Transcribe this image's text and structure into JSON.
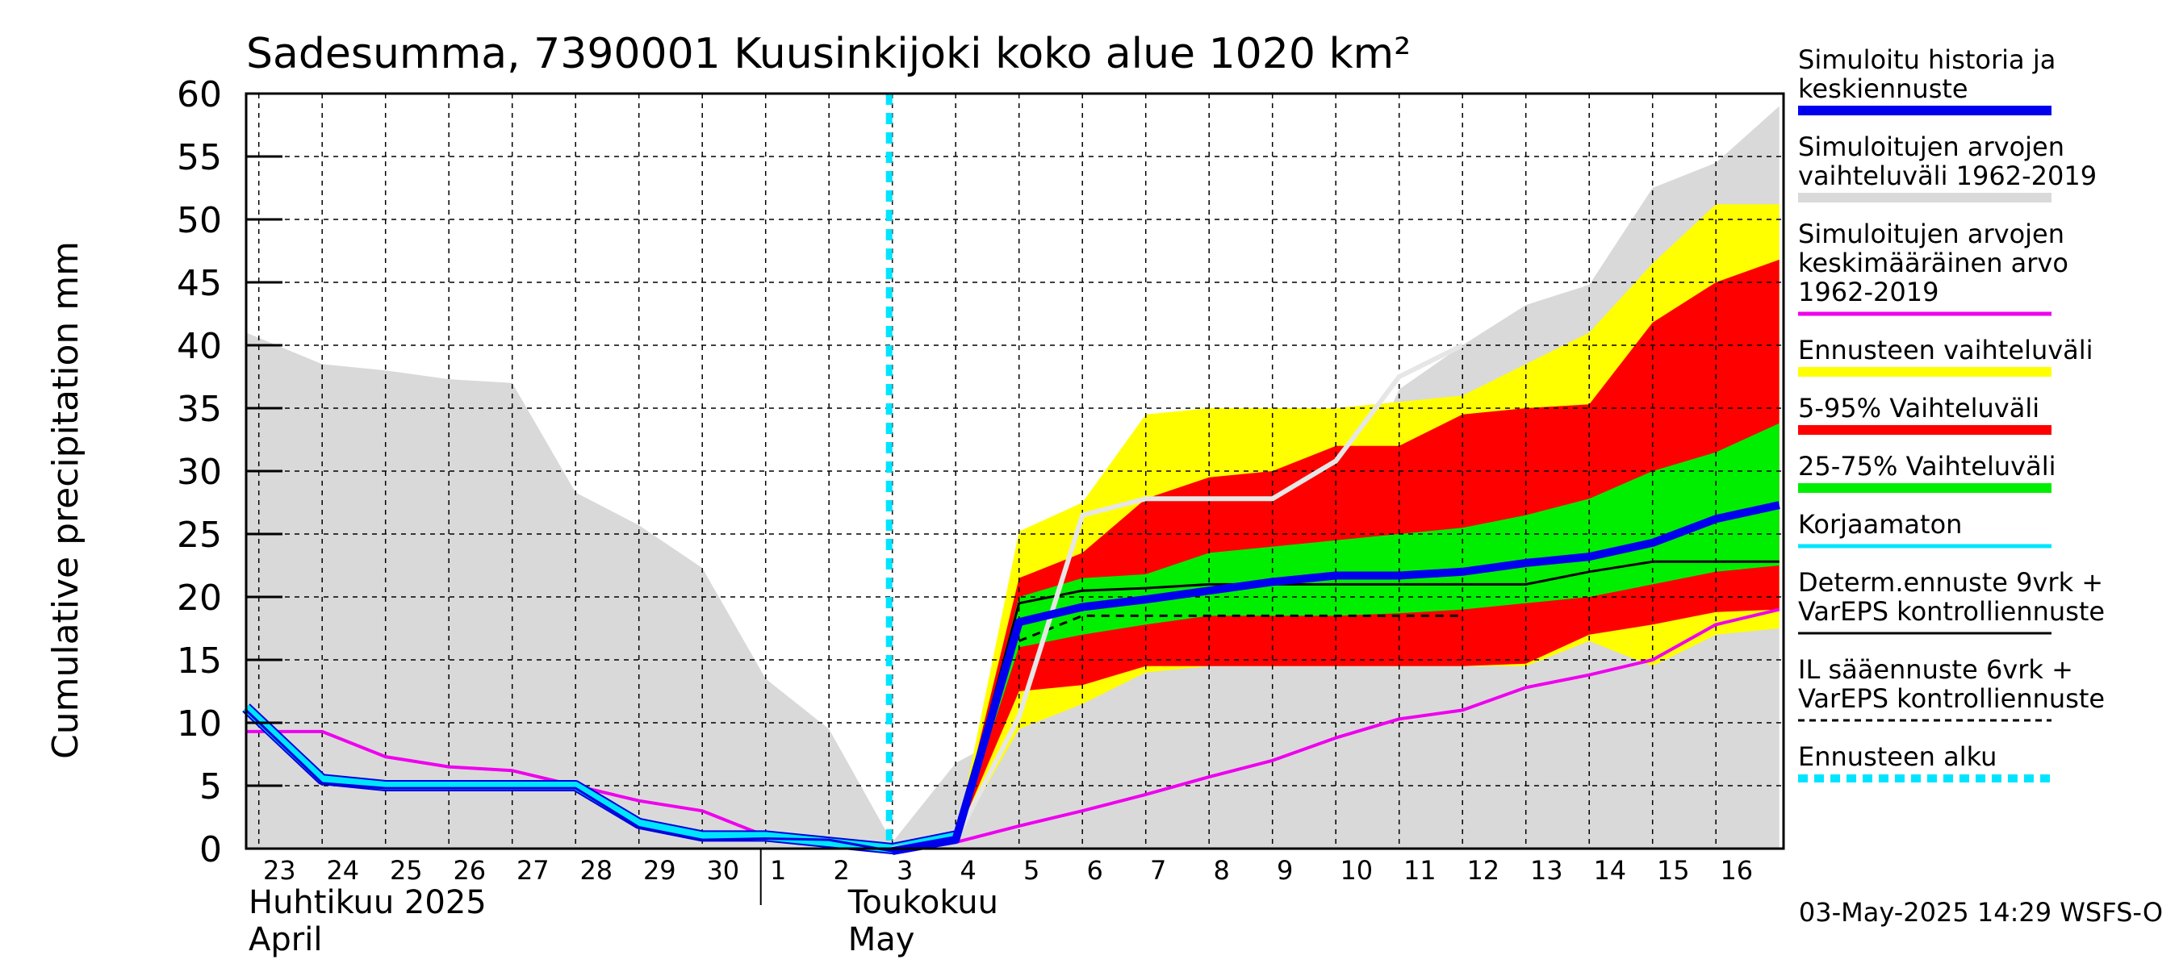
{
  "chart_data": {
    "type": "area",
    "title": "Sadesumma, 7390001 Kuusinkijoki koko alue 1020 km²",
    "ylabel": "Cumulative precipitation    mm",
    "ylim": [
      0,
      60
    ],
    "yticks": [
      0,
      5,
      10,
      15,
      20,
      25,
      30,
      35,
      40,
      45,
      50,
      55,
      60
    ],
    "x_days": [
      "23",
      "24",
      "25",
      "26",
      "27",
      "28",
      "29",
      "30",
      "1",
      "2",
      "3",
      "4",
      "5",
      "6",
      "7",
      "8",
      "9",
      "10",
      "11",
      "12",
      "13",
      "14",
      "15",
      "16"
    ],
    "x_day_numbers": [
      0,
      1,
      2,
      3,
      4,
      5,
      6,
      7,
      8,
      9,
      10,
      11,
      12,
      13,
      14,
      15,
      16,
      17,
      18,
      19,
      20,
      21,
      22,
      23
    ],
    "month_labels": [
      {
        "line1": "Huhtikuu  2025",
        "line2": "April"
      },
      {
        "line1": "Toukokuu",
        "line2": "May"
      }
    ],
    "forecast_start_day": 10,
    "grid": true,
    "legend_placement": "right",
    "series": [
      {
        "name": "Simuloitujen arvojen vaihteluväli 1962-2019",
        "kind": "band",
        "color": "#d9d9d9",
        "x": [
          -0.2,
          1,
          2,
          3,
          4,
          5,
          6,
          7,
          8,
          9,
          10,
          11,
          12,
          13,
          14,
          15,
          16,
          17,
          18,
          19,
          20,
          21,
          22,
          23,
          24
        ],
        "upper": [
          41.0,
          38.5,
          38.0,
          37.3,
          37.0,
          28.3,
          25.7,
          22.3,
          13.5,
          9.5,
          0.5,
          6.8,
          9.5,
          12.2,
          14.0,
          16.5,
          20.0,
          25.2,
          36.5,
          40.0,
          43.2,
          44.8,
          52.5,
          54.5,
          59.0
        ],
        "lower": [
          0,
          0,
          0,
          0,
          0,
          0,
          0,
          0,
          0,
          0,
          0,
          0,
          0,
          0,
          0,
          0,
          0,
          0,
          0,
          0,
          0,
          0,
          0,
          0,
          0
        ]
      },
      {
        "name": "Ennusteen vaihteluväli",
        "kind": "band",
        "color": "#ffff00",
        "x": [
          10,
          11,
          12,
          13,
          14,
          15,
          16,
          17,
          18,
          19,
          20,
          21,
          22,
          23,
          24
        ],
        "upper": [
          0.0,
          0.7,
          25.2,
          27.5,
          34.5,
          35.0,
          35.0,
          35.0,
          35.5,
          36.0,
          38.5,
          41.0,
          46.5,
          51.2,
          51.2
        ],
        "lower": [
          0.0,
          0.7,
          9.5,
          11.5,
          14.0,
          14.5,
          14.5,
          14.5,
          14.5,
          14.5,
          14.5,
          16.5,
          14.5,
          17.0,
          17.5
        ]
      },
      {
        "name": "5-95% Vaihteluväli",
        "kind": "band",
        "color": "#ff0000",
        "x": [
          10,
          11,
          12,
          13,
          14,
          15,
          16,
          17,
          18,
          19,
          20,
          21,
          22,
          23,
          24
        ],
        "upper": [
          0.0,
          0.7,
          21.5,
          23.5,
          27.8,
          29.5,
          30.0,
          32.0,
          32.0,
          34.5,
          35.0,
          35.3,
          41.8,
          45.0,
          46.8
        ],
        "lower": [
          0.0,
          0.7,
          12.5,
          13.0,
          14.5,
          14.5,
          14.5,
          14.5,
          14.5,
          14.5,
          14.7,
          17.0,
          17.8,
          18.8,
          19.0
        ]
      },
      {
        "name": "25-75% Vaihteluväli",
        "kind": "band",
        "color": "#00ee00",
        "x": [
          10,
          11,
          12,
          13,
          14,
          15,
          16,
          17,
          18,
          19,
          20,
          21,
          22,
          23,
          24
        ],
        "upper": [
          0.0,
          0.7,
          20.0,
          21.5,
          21.8,
          23.5,
          24.0,
          24.5,
          25.0,
          25.5,
          26.5,
          27.8,
          30.0,
          31.5,
          33.8
        ],
        "lower": [
          0.0,
          0.7,
          16.0,
          17.0,
          17.8,
          18.5,
          18.5,
          18.5,
          18.7,
          19.0,
          19.5,
          20.0,
          21.0,
          22.0,
          22.5
        ]
      },
      {
        "name": "Simuloitujen arvojen keskimääräinen arvo 1962-2019",
        "kind": "line",
        "color": "#ee00ee",
        "width": 4,
        "x": [
          -0.2,
          1,
          2,
          3,
          4,
          5,
          6,
          7,
          8,
          9,
          10,
          11,
          12,
          13,
          14,
          15,
          16,
          17,
          18,
          19,
          20,
          21,
          22,
          23,
          24
        ],
        "y": [
          9.3,
          9.3,
          7.3,
          6.5,
          6.2,
          5.0,
          3.8,
          3.0,
          1.0,
          0.5,
          0.0,
          0.5,
          1.8,
          3.0,
          4.3,
          5.7,
          7.0,
          8.8,
          10.3,
          11.0,
          12.8,
          13.8,
          15.0,
          17.8,
          19.0
        ]
      },
      {
        "name": "Korjaamaton",
        "kind": "line",
        "color": "#00e5ff",
        "width": 10,
        "x": [
          -0.2,
          1,
          2,
          3,
          4,
          5,
          6,
          7,
          8,
          9,
          10,
          11
        ],
        "y": [
          11.2,
          5.5,
          5.0,
          5.0,
          5.0,
          5.0,
          2.0,
          1.0,
          1.0,
          0.5,
          0.0,
          1.0
        ]
      },
      {
        "name": "Simuloitu historia ja keskiennuste (historia)",
        "kind": "line",
        "color": "#0000dd",
        "width": 3,
        "x": [
          -0.2,
          1,
          2,
          3,
          4,
          5,
          6,
          7,
          8,
          9,
          10,
          11
        ],
        "y": [
          11.0,
          5.2,
          4.8,
          4.8,
          4.8,
          4.8,
          1.7,
          0.7,
          0.8,
          0.7,
          -0.2,
          0.7
        ]
      },
      {
        "name": "Determ.ennuste 9vrk + VarEPS kontrolliennuste",
        "kind": "line",
        "color": "#000000",
        "width": 3,
        "x": [
          10,
          11,
          12,
          13,
          14,
          15,
          16,
          17,
          18,
          19,
          20,
          21,
          22,
          23,
          24
        ],
        "y": [
          0.0,
          0.7,
          19.5,
          20.5,
          20.7,
          21.0,
          21.0,
          21.0,
          21.0,
          21.0,
          21.0,
          22.0,
          22.8,
          22.8,
          22.8
        ]
      },
      {
        "name": "IL sääennuste 6vrk + VarEPS kontrolliennuste",
        "kind": "line",
        "color": "#000000",
        "width": 3,
        "dash": "10,8",
        "x": [
          12,
          13,
          14,
          15,
          16,
          17,
          18,
          19
        ],
        "y": [
          16.5,
          18.5,
          18.5,
          18.5,
          18.5,
          18.5,
          18.5,
          18.5
        ]
      },
      {
        "name": "Simulated max (light)",
        "kind": "line",
        "color": "#e6e6e6",
        "width": 6,
        "x": [
          10,
          11,
          12,
          13,
          14,
          15,
          16,
          17,
          18,
          19
        ],
        "y": [
          0.0,
          0.7,
          10.5,
          26.5,
          27.8,
          27.8,
          27.8,
          30.8,
          37.5,
          40.0
        ]
      },
      {
        "name": "Simuloitu historia ja keskiennuste",
        "kind": "line",
        "color": "#0000ee",
        "width": 10,
        "x": [
          10,
          11,
          12,
          13,
          14,
          15,
          16,
          17,
          18,
          19,
          20,
          21,
          22,
          23,
          24
        ],
        "y": [
          -0.2,
          0.7,
          18.0,
          19.2,
          19.8,
          20.5,
          21.2,
          21.7,
          21.7,
          22.0,
          22.7,
          23.2,
          24.3,
          26.2,
          27.3
        ]
      }
    ],
    "legend": [
      {
        "label": "Simuloitu historia ja\nkeskiennuste",
        "color": "#0000ee",
        "style": "line-thick"
      },
      {
        "label": "Simuloitujen arvojen\nvaihteluväli 1962-2019",
        "color": "#d9d9d9",
        "style": "line-thick"
      },
      {
        "label": "Simuloitujen arvojen\nkeskimääräinen arvo\n   1962-2019",
        "color": "#ee00ee",
        "style": "line"
      },
      {
        "label": "Ennusteen vaihteluväli",
        "color": "#ffff00",
        "style": "line-thick"
      },
      {
        "label": "5-95% Vaihteluväli",
        "color": "#ff0000",
        "style": "line-thick"
      },
      {
        "label": "25-75% Vaihteluväli",
        "color": "#00ee00",
        "style": "line-thick"
      },
      {
        "label": "Korjaamaton",
        "color": "#00e5ff",
        "style": "line"
      },
      {
        "label": "Determ.ennuste 9vrk +\nVarEPS kontrolliennuste",
        "color": "#000000",
        "style": "line-thin"
      },
      {
        "label": "IL sääennuste 6vrk  +\n  VarEPS kontrolliennuste",
        "color": "#000000",
        "style": "dashed"
      },
      {
        "label": "Ennusteen alku",
        "color": "#00e5ff",
        "style": "dotted-thick"
      }
    ],
    "footer": "03-May-2025 14:29 WSFS-O"
  }
}
